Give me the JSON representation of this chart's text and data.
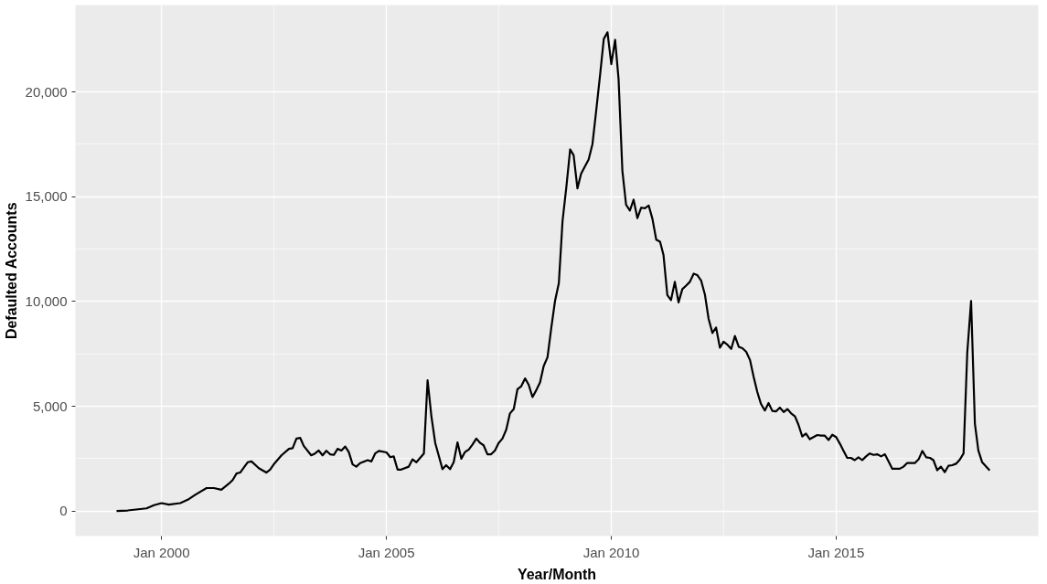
{
  "chart_data": {
    "type": "line",
    "xlabel": "Year/Month",
    "ylabel": "Defaulted Accounts",
    "grid": true,
    "marker": "none",
    "line_style": "solid",
    "xlim": [
      "1998-02",
      "2019-07"
    ],
    "ylim": [
      -1190,
      24150
    ],
    "xticks": [
      {
        "value": "2000-01",
        "label": "Jan 2000"
      },
      {
        "value": "2005-01",
        "label": "Jan 2005"
      },
      {
        "value": "2010-01",
        "label": "Jan 2010"
      },
      {
        "value": "2015-01",
        "label": "Jan 2015"
      }
    ],
    "yticks": [
      0,
      {
        "value": 5000,
        "label": "5,000"
      },
      {
        "value": 10000,
        "label": "10,000"
      },
      {
        "value": 15000,
        "label": "15,000"
      },
      {
        "value": 20000,
        "label": "20,000"
      }
    ],
    "x": [
      "1999-01",
      "1999-04",
      "1999-09",
      "1999-11",
      "2000-01",
      "2000-03",
      "2000-06",
      "2000-08",
      "2000-10",
      "2001-01",
      "2001-03",
      "2001-05",
      "2001-07",
      "2001-08",
      "2001-09",
      "2001-10",
      "2001-12",
      "2002-01",
      "2002-03",
      "2002-05",
      "2002-06",
      "2002-07",
      "2002-09",
      "2002-11",
      "2002-12",
      "2003-01",
      "2003-02",
      "2003-03",
      "2003-05",
      "2003-06",
      "2003-07",
      "2003-08",
      "2003-09",
      "2003-10",
      "2003-11",
      "2003-12",
      "2004-01",
      "2004-02",
      "2004-03",
      "2004-04",
      "2004-05",
      "2004-06",
      "2004-08",
      "2004-09",
      "2004-10",
      "2004-11",
      "2005-01",
      "2005-02",
      "2005-03",
      "2005-04",
      "2005-05",
      "2005-07",
      "2005-08",
      "2005-09",
      "2005-11",
      "2005-12",
      "2006-01",
      "2006-02",
      "2006-04",
      "2006-05",
      "2006-06",
      "2006-07",
      "2006-08",
      "2006-09",
      "2006-10",
      "2006-11",
      "2006-12",
      "2007-01",
      "2007-02",
      "2007-03",
      "2007-04",
      "2007-05",
      "2007-06",
      "2007-07",
      "2007-08",
      "2007-09",
      "2007-10",
      "2007-11",
      "2007-12",
      "2008-01",
      "2008-02",
      "2008-03",
      "2008-04",
      "2008-05",
      "2008-06",
      "2008-07",
      "2008-08",
      "2008-09",
      "2008-10",
      "2008-11",
      "2008-12",
      "2009-01",
      "2009-02",
      "2009-03",
      "2009-04",
      "2009-05",
      "2009-07",
      "2009-08",
      "2009-09",
      "2009-10",
      "2009-11",
      "2009-12",
      "2010-01",
      "2010-02",
      "2010-03",
      "2010-04",
      "2010-05",
      "2010-06",
      "2010-07",
      "2010-08",
      "2010-09",
      "2010-10",
      "2010-11",
      "2010-12",
      "2011-01",
      "2011-02",
      "2011-03",
      "2011-04",
      "2011-05",
      "2011-06",
      "2011-07",
      "2011-08",
      "2011-09",
      "2011-10",
      "2011-11",
      "2011-12",
      "2012-01",
      "2012-02",
      "2012-03",
      "2012-04",
      "2012-05",
      "2012-06",
      "2012-07",
      "2012-08",
      "2012-09",
      "2012-10",
      "2012-11",
      "2012-12",
      "2013-01",
      "2013-02",
      "2013-03",
      "2013-04",
      "2013-05",
      "2013-06",
      "2013-07",
      "2013-08",
      "2013-09",
      "2013-10",
      "2013-11",
      "2013-12",
      "2014-01",
      "2014-02",
      "2014-03",
      "2014-04",
      "2014-05",
      "2014-06",
      "2014-07",
      "2014-08",
      "2014-09",
      "2014-10",
      "2014-11",
      "2014-12",
      "2015-01",
      "2015-02",
      "2015-03",
      "2015-04",
      "2015-05",
      "2015-06",
      "2015-07",
      "2015-08",
      "2015-09",
      "2015-10",
      "2015-11",
      "2015-12",
      "2016-01",
      "2016-02",
      "2016-04",
      "2016-06",
      "2016-07",
      "2016-08",
      "2016-10",
      "2016-11",
      "2016-12",
      "2017-01",
      "2017-02",
      "2017-03",
      "2017-04",
      "2017-05",
      "2017-06",
      "2017-07",
      "2017-08",
      "2017-09",
      "2017-10",
      "2017-11",
      "2017-12",
      "2018-01",
      "2018-02",
      "2018-03",
      "2018-04",
      "2018-06"
    ],
    "series": [
      {
        "color": "#000000",
        "values": [
          0,
          30,
          130,
          280,
          380,
          310,
          380,
          540,
          780,
          1100,
          1100,
          1020,
          1310,
          1480,
          1790,
          1840,
          2330,
          2370,
          2050,
          1840,
          1980,
          2230,
          2660,
          2970,
          3000,
          3460,
          3490,
          3110,
          2660,
          2750,
          2890,
          2660,
          2880,
          2710,
          2680,
          2970,
          2890,
          3080,
          2820,
          2230,
          2120,
          2290,
          2430,
          2370,
          2750,
          2870,
          2800,
          2570,
          2610,
          1980,
          1980,
          2120,
          2470,
          2330,
          2750,
          6240,
          4520,
          3250,
          2000,
          2190,
          2000,
          2330,
          3280,
          2500,
          2820,
          2940,
          3180,
          3460,
          3250,
          3140,
          2710,
          2710,
          2890,
          3250,
          3460,
          3890,
          4660,
          4870,
          5820,
          5960,
          6330,
          6030,
          5440,
          5760,
          6140,
          6920,
          7340,
          8760,
          10030,
          10880,
          13840,
          15470,
          17260,
          16980,
          15400,
          16100,
          16780,
          17510,
          19140,
          20760,
          22530,
          22850,
          21330,
          22490,
          20620,
          16240,
          14620,
          14340,
          14860,
          13980,
          14480,
          14450,
          14580,
          13950,
          12950,
          12850,
          12220,
          10310,
          10070,
          10940,
          9960,
          10590,
          10760,
          10940,
          11330,
          11260,
          10990,
          10310,
          9180,
          8500,
          8760,
          7800,
          8080,
          7940,
          7740,
          8360,
          7840,
          7770,
          7600,
          7200,
          6430,
          5680,
          5110,
          4800,
          5160,
          4780,
          4760,
          4940,
          4730,
          4870,
          4660,
          4520,
          4120,
          3560,
          3700,
          3430,
          3530,
          3630,
          3600,
          3600,
          3390,
          3640,
          3530,
          3210,
          2890,
          2540,
          2540,
          2430,
          2570,
          2430,
          2610,
          2750,
          2680,
          2710,
          2610,
          2710,
          2020,
          2020,
          2120,
          2300,
          2290,
          2470,
          2870,
          2570,
          2540,
          2430,
          1950,
          2120,
          1860,
          2160,
          2190,
          2260,
          2450,
          2750,
          7560,
          10030,
          4170,
          2890,
          2330,
          1940
        ]
      }
    ]
  }
}
